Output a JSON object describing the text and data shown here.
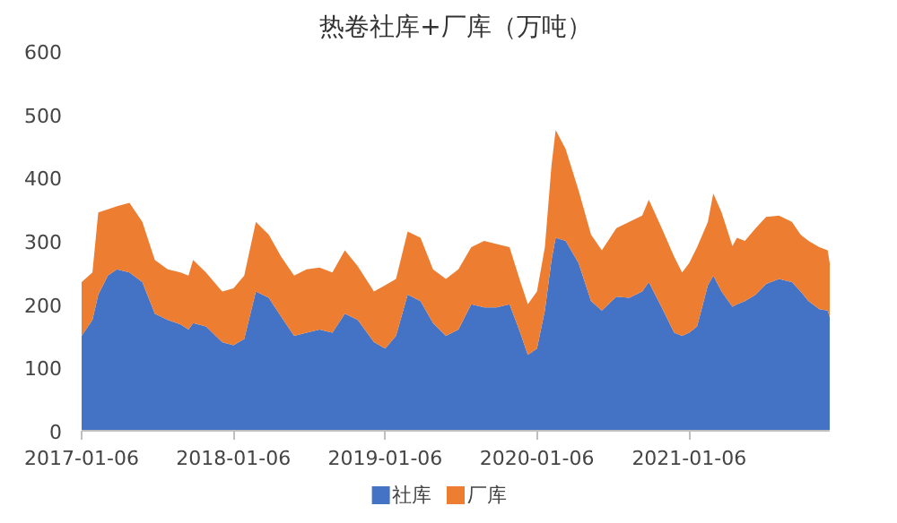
{
  "chart_data": {
    "type": "area",
    "stacked": true,
    "title": "热卷社库+厂库（万吨）",
    "x": [
      "2017-01-06",
      "2017-02-01",
      "2017-02-15",
      "2017-03-10",
      "2017-04-01",
      "2017-05-01",
      "2017-06-01",
      "2017-07-01",
      "2017-08-01",
      "2017-09-01",
      "2017-09-20",
      "2017-10-01",
      "2017-11-01",
      "2017-12-10",
      "2018-01-06",
      "2018-02-01",
      "2018-03-01",
      "2018-04-01",
      "2018-05-01",
      "2018-06-01",
      "2018-07-01",
      "2018-08-01",
      "2018-09-01",
      "2018-10-01",
      "2018-11-01",
      "2018-12-10",
      "2019-01-06",
      "2019-02-01",
      "2019-03-01",
      "2019-04-01",
      "2019-05-01",
      "2019-06-01",
      "2019-07-01",
      "2019-08-01",
      "2019-09-01",
      "2019-10-01",
      "2019-11-01",
      "2019-11-25",
      "2019-12-15",
      "2020-01-06",
      "2020-01-25",
      "2020-02-10",
      "2020-02-20",
      "2020-03-15",
      "2020-04-15",
      "2020-05-15",
      "2020-06-10",
      "2020-07-15",
      "2020-08-15",
      "2020-09-15",
      "2020-10-01",
      "2020-11-01",
      "2020-12-01",
      "2020-12-20",
      "2021-01-06",
      "2021-01-25",
      "2021-02-20",
      "2021-03-05",
      "2021-03-25",
      "2021-04-20",
      "2021-05-01",
      "2021-05-20",
      "2021-06-15",
      "2021-07-10",
      "2021-08-10",
      "2021-09-10",
      "2021-10-01",
      "2021-10-20",
      "2021-11-15",
      "2021-12-05",
      "2021-12-10"
    ],
    "series": [
      {
        "name": "社库",
        "color": "#4472c4",
        "values": [
          150,
          175,
          215,
          245,
          255,
          250,
          235,
          185,
          175,
          168,
          160,
          170,
          165,
          140,
          135,
          145,
          220,
          210,
          180,
          150,
          155,
          160,
          155,
          185,
          175,
          140,
          130,
          150,
          215,
          205,
          170,
          150,
          160,
          200,
          195,
          195,
          200,
          158,
          120,
          130,
          190,
          270,
          305,
          300,
          265,
          205,
          190,
          212,
          210,
          220,
          235,
          195,
          155,
          150,
          155,
          165,
          230,
          245,
          220,
          196,
          200,
          205,
          215,
          232,
          240,
          235,
          220,
          205,
          192,
          190,
          180
        ]
      },
      {
        "name": "厂库",
        "color": "#ed7d31",
        "values": [
          85,
          75,
          130,
          105,
          100,
          110,
          95,
          85,
          80,
          82,
          85,
          100,
          85,
          80,
          90,
          100,
          110,
          100,
          95,
          95,
          100,
          98,
          95,
          100,
          85,
          80,
          100,
          90,
          100,
          100,
          85,
          90,
          95,
          90,
          105,
          100,
          90,
          82,
          80,
          90,
          100,
          150,
          170,
          145,
          115,
          105,
          95,
          108,
          120,
          120,
          130,
          125,
          120,
          100,
          110,
          125,
          100,
          130,
          125,
          96,
          105,
          95,
          105,
          106,
          100,
          95,
          90,
          95,
          98,
          95,
          85
        ]
      }
    ],
    "xlim": [
      "2017-01-06",
      "2021-12-10"
    ],
    "xticks": [
      "2017-01-06",
      "2018-01-06",
      "2019-01-06",
      "2020-01-06",
      "2021-01-06"
    ],
    "ylim": [
      0,
      600
    ],
    "yticks": [
      0,
      100,
      200,
      300,
      400,
      500,
      600
    ],
    "grid": false,
    "legend": "bottom"
  }
}
